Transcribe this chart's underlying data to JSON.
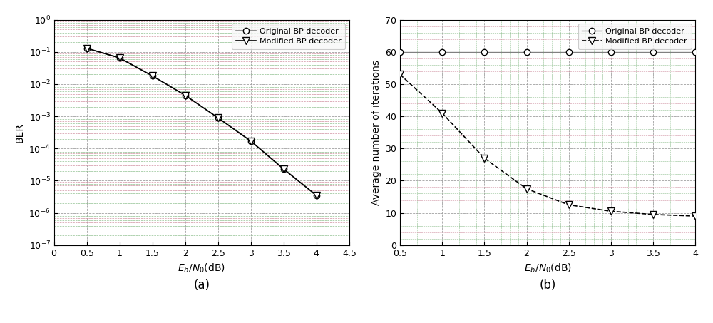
{
  "plot_a": {
    "x_orig": [
      0.5,
      1.0,
      1.5,
      2.0,
      2.5,
      3.0,
      3.5,
      4.0
    ],
    "y_orig": [
      0.13,
      0.065,
      0.018,
      0.0045,
      0.0009,
      0.00017,
      2.3e-05,
      3.5e-06
    ],
    "x_mod": [
      0.5,
      1.0,
      1.5,
      2.0,
      2.5,
      3.0,
      3.5,
      4.0
    ],
    "y_mod": [
      0.13,
      0.065,
      0.018,
      0.0045,
      0.0009,
      0.00017,
      2.3e-05,
      3.5e-06
    ],
    "xlim": [
      0,
      4.5
    ],
    "ylim": [
      1e-07,
      1.0
    ],
    "xlabel": "E_b/N_0(dB)",
    "ylabel": "BER",
    "caption": "(a)",
    "xticks": [
      0,
      0.5,
      1.0,
      1.5,
      2.0,
      2.5,
      3.0,
      3.5,
      4.0,
      4.5
    ]
  },
  "plot_b": {
    "x_orig": [
      0.5,
      1.0,
      1.5,
      2.0,
      2.5,
      3.0,
      3.5,
      4.0
    ],
    "y_orig": [
      60,
      60,
      60,
      60,
      60,
      60,
      60,
      60
    ],
    "x_mod": [
      0.5,
      1.0,
      1.5,
      2.0,
      2.5,
      3.0,
      3.5,
      4.0
    ],
    "y_mod": [
      53,
      41,
      27,
      17.5,
      12.5,
      10.5,
      9.5,
      9
    ],
    "xlim": [
      0.5,
      4.0
    ],
    "ylim": [
      0,
      70
    ],
    "xlabel": "E_b/N_0(dB)",
    "ylabel": "Average number of iterations",
    "caption": "(b)",
    "xticks": [
      0.5,
      1.0,
      1.5,
      2.0,
      2.5,
      3.0,
      3.5,
      4.0
    ],
    "yticks": [
      0,
      10,
      20,
      30,
      40,
      50,
      60,
      70
    ]
  },
  "legend_orig_label": "Original BP decoder",
  "legend_mod_label": "Modified BP decoder",
  "line_color": "#000000",
  "gray_line_color": "#808080",
  "bg_color": "#ffffff",
  "grid_major_color": "#a0a0a0",
  "grid_minor_green": "#90c090",
  "grid_minor_pink": "#d090a0",
  "fig_width": 10.0,
  "fig_height": 4.53
}
